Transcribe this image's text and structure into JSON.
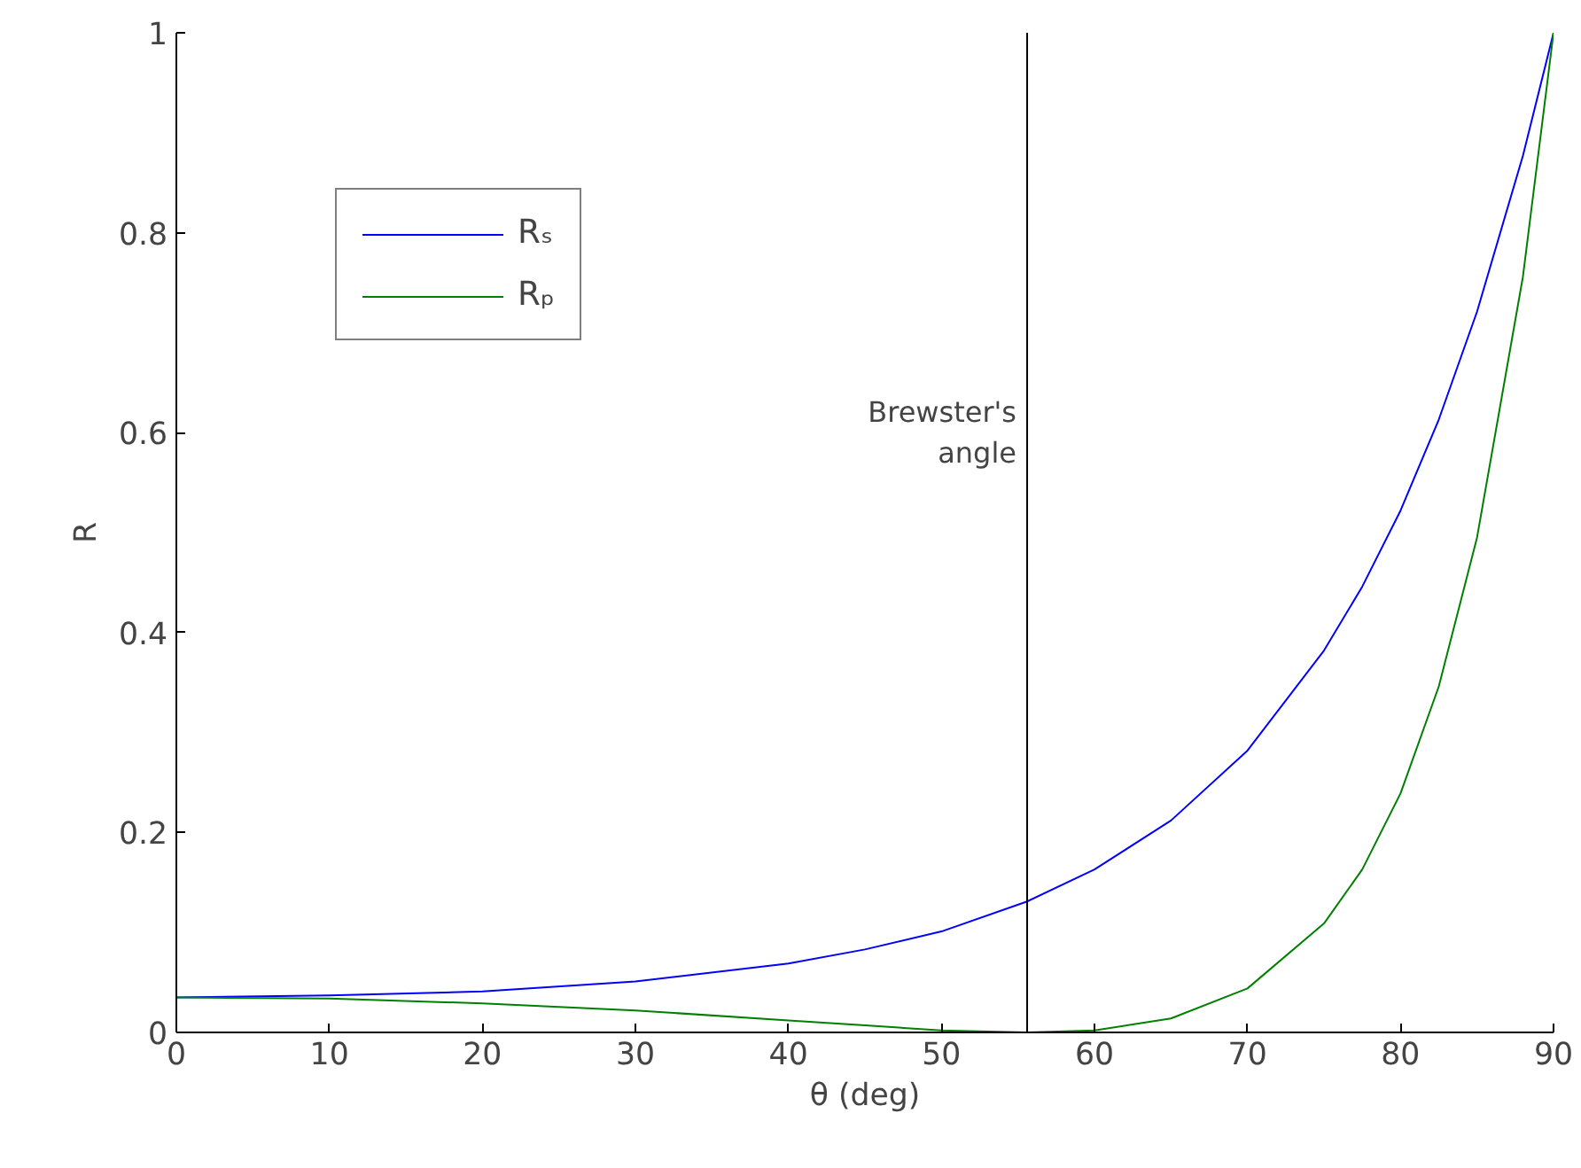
{
  "chart_data": {
    "type": "line",
    "xlabel": "θ (deg)",
    "ylabel": "R",
    "x": [
      0,
      10,
      20,
      30,
      40,
      45,
      50,
      55.6,
      60,
      65,
      70,
      75,
      77.5,
      80,
      82.5,
      85,
      88,
      90
    ],
    "series": [
      {
        "name": "Rₛ",
        "color": "#0000ff",
        "values": [
          0.035,
          0.037,
          0.041,
          0.051,
          0.069,
          0.083,
          0.101,
          0.131,
          0.163,
          0.212,
          0.282,
          0.382,
          0.446,
          0.522,
          0.613,
          0.721,
          0.877,
          1
        ]
      },
      {
        "name": "Rₚ",
        "color": "#008000",
        "values": [
          0.035,
          0.034,
          0.029,
          0.022,
          0.012,
          0.007,
          0.002,
          0,
          0.002,
          0.014,
          0.044,
          0.109,
          0.163,
          0.239,
          0.346,
          0.495,
          0.756,
          1
        ]
      }
    ],
    "xlim": [
      0,
      90
    ],
    "ylim": [
      0,
      1
    ],
    "xticks": [
      0,
      10,
      20,
      30,
      40,
      50,
      60,
      70,
      80,
      90
    ],
    "yticks": [
      0,
      0.2,
      0.4,
      0.6,
      0.8,
      1
    ],
    "ref_lines": [
      {
        "axis": "x",
        "value": 55.6,
        "label": "Brewster's angle",
        "color": "#000000"
      }
    ],
    "legend": "top left",
    "grid": false,
    "marker": "none",
    "line_style": "solid"
  }
}
